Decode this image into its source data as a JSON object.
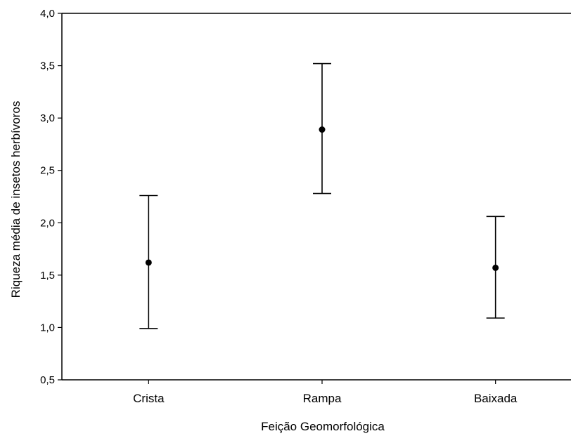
{
  "chart_data": {
    "type": "scatter",
    "subtype": "mean-with-error-bars",
    "title": "",
    "xlabel": "Feição Geomorfológica",
    "ylabel": "Riqueza média de insetos herbívoros",
    "categories": [
      "Crista",
      "Rampa",
      "Baixada"
    ],
    "series": [
      {
        "values": [
          1.62,
          2.89,
          1.57
        ],
        "lower": [
          0.99,
          2.28,
          1.09
        ],
        "upper": [
          2.26,
          3.52,
          2.06
        ]
      }
    ],
    "ylim": [
      0.5,
      4.0
    ],
    "yticks": [
      "0,5",
      "1,0",
      "1,5",
      "2,0",
      "2,5",
      "3,0",
      "3,5",
      "4,0"
    ],
    "grid": false,
    "legend": "none",
    "colors": {
      "marker": "#000000",
      "axis": "#000000"
    }
  }
}
